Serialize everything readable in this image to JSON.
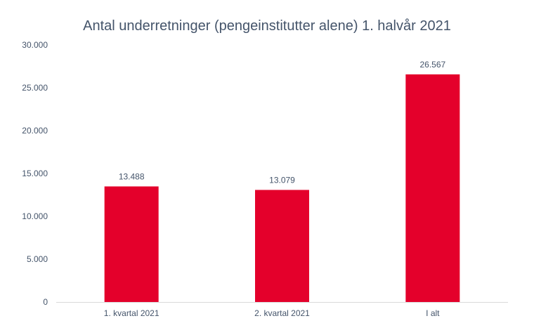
{
  "chart_data": {
    "type": "bar",
    "title": "Antal underretninger (pengeinstitutter alene) 1. halvår 2021",
    "xlabel": "",
    "ylabel": "",
    "categories": [
      "1. kvartal 2021",
      "2. kvartal 2021",
      "I alt"
    ],
    "values": [
      13488,
      13079,
      26567
    ],
    "value_labels": [
      "13.488",
      "13.079",
      "26.567"
    ],
    "ylim": [
      0,
      30000
    ],
    "yticks": [
      0,
      5000,
      10000,
      15000,
      20000,
      25000,
      30000
    ],
    "ytick_labels": [
      "0",
      "5.000",
      "10.000",
      "15.000",
      "20.000",
      "25.000",
      "30.000"
    ],
    "grid": false,
    "legend": "none",
    "bar_color": "#e4002b",
    "text_color": "#44546a",
    "axis_color": "#d9d9d9"
  }
}
